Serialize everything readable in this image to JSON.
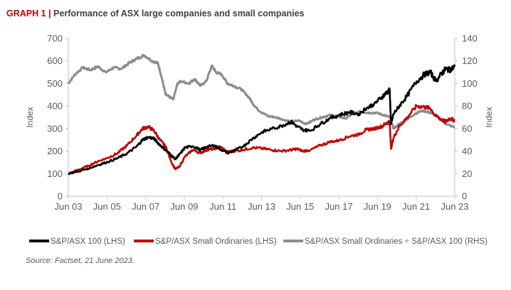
{
  "title": {
    "prefix": "GRAPH 1",
    "separator": "|",
    "text": "Performance of ASX large companies and small companies"
  },
  "source": "Source: Factset, 21 June 2023.",
  "colors": {
    "asx100": "#000000",
    "small_ords": "#c00000",
    "ratio": "#8c8c8c",
    "title_accent": "#c00000",
    "axis": "#bfbfbf"
  },
  "chart_data": {
    "type": "line",
    "x_ticks": [
      "Jun 03",
      "Jun 05",
      "Jun 07",
      "Jun 09",
      "Jun 11",
      "Jun 13",
      "Jun 15",
      "Jun 17",
      "Jun 19",
      "Jun 21",
      "Jun 23"
    ],
    "xlim": [
      2003.46,
      2023.47
    ],
    "ylim_left": [
      0,
      700
    ],
    "ylim_right": [
      0,
      140
    ],
    "yticks_left": [
      0,
      100,
      200,
      300,
      400,
      500,
      600,
      700
    ],
    "yticks_right": [
      0,
      20,
      40,
      60,
      80,
      100,
      120,
      140
    ],
    "ylabel_left": "Index",
    "ylabel_right": "Index",
    "grid": false,
    "legend_position": "bottom",
    "series": [
      {
        "name": "S&P/ASX 100 (LHS)",
        "axis": "left",
        "color": "#000000",
        "x": [
          2003.46,
          2004.0,
          2004.5,
          2005.0,
          2005.5,
          2006.0,
          2006.5,
          2007.0,
          2007.3,
          2007.6,
          2007.9,
          2008.2,
          2008.5,
          2008.8,
          2009.0,
          2009.2,
          2009.5,
          2009.9,
          2010.3,
          2010.6,
          2011.0,
          2011.3,
          2011.7,
          2012.0,
          2012.5,
          2013.0,
          2013.5,
          2014.0,
          2014.5,
          2015.0,
          2015.3,
          2015.6,
          2016.0,
          2016.5,
          2017.0,
          2017.5,
          2018.0,
          2018.5,
          2018.9,
          2019.3,
          2019.7,
          2019.95,
          2020.1,
          2020.17,
          2020.3,
          2020.6,
          2021.0,
          2021.5,
          2021.9,
          2022.2,
          2022.5,
          2022.8,
          2023.0,
          2023.2,
          2023.47
        ],
        "values": [
          100,
          110,
          123,
          138,
          152,
          168,
          190,
          220,
          250,
          262,
          255,
          228,
          205,
          180,
          165,
          183,
          215,
          222,
          205,
          218,
          225,
          210,
          192,
          200,
          220,
          255,
          285,
          298,
          312,
          330,
          310,
          295,
          290,
          320,
          345,
          360,
          372,
          365,
          390,
          410,
          440,
          460,
          470,
          320,
          365,
          400,
          445,
          510,
          540,
          550,
          510,
          545,
          565,
          560,
          575
        ]
      },
      {
        "name": "S&P/ASX Small Ordinaries (LHS)",
        "axis": "left",
        "color": "#c00000",
        "x": [
          2003.46,
          2004.0,
          2004.5,
          2005.0,
          2005.5,
          2006.0,
          2006.5,
          2007.0,
          2007.3,
          2007.6,
          2007.9,
          2008.2,
          2008.5,
          2008.8,
          2009.0,
          2009.2,
          2009.5,
          2009.9,
          2010.3,
          2010.6,
          2011.0,
          2011.3,
          2011.7,
          2012.0,
          2012.5,
          2013.0,
          2013.5,
          2014.0,
          2014.5,
          2015.0,
          2015.3,
          2015.6,
          2016.0,
          2016.5,
          2017.0,
          2017.5,
          2018.0,
          2018.5,
          2018.9,
          2019.3,
          2019.7,
          2019.95,
          2020.1,
          2020.17,
          2020.3,
          2020.6,
          2021.0,
          2021.5,
          2021.9,
          2022.2,
          2022.5,
          2022.8,
          2023.0,
          2023.2,
          2023.47
        ],
        "values": [
          100,
          118,
          135,
          155,
          170,
          190,
          225,
          270,
          300,
          308,
          290,
          250,
          220,
          150,
          120,
          130,
          175,
          205,
          192,
          205,
          210,
          220,
          196,
          200,
          205,
          215,
          212,
          205,
          200,
          205,
          210,
          200,
          205,
          225,
          240,
          248,
          265,
          275,
          295,
          300,
          310,
          325,
          330,
          210,
          260,
          310,
          350,
          400,
          395,
          390,
          355,
          340,
          330,
          345,
          335
        ]
      },
      {
        "name": "S&P/ASX Small Ordinaries ÷ S&P/ASX 100 (RHS)",
        "axis": "right",
        "color": "#8c8c8c",
        "x": [
          2003.46,
          2003.8,
          2004.2,
          2004.6,
          2005.0,
          2005.4,
          2005.8,
          2006.2,
          2006.6,
          2007.0,
          2007.4,
          2007.8,
          2008.1,
          2008.3,
          2008.5,
          2008.7,
          2008.9,
          2009.1,
          2009.3,
          2009.7,
          2010.0,
          2010.3,
          2010.6,
          2010.9,
          2011.1,
          2011.4,
          2011.7,
          2012.0,
          2012.4,
          2012.8,
          2013.1,
          2013.4,
          2013.8,
          2014.2,
          2014.6,
          2015.0,
          2015.4,
          2015.8,
          2016.2,
          2016.6,
          2017.0,
          2017.4,
          2017.8,
          2018.2,
          2018.6,
          2019.0,
          2019.4,
          2019.8,
          2020.1,
          2020.3,
          2020.6,
          2021.0,
          2021.4,
          2021.8,
          2022.2,
          2022.6,
          2023.0,
          2023.47
        ],
        "values": [
          100,
          108,
          114,
          112,
          115,
          110,
          114,
          113,
          118,
          122,
          125,
          120,
          118,
          105,
          90,
          88,
          86,
          100,
          102,
          100,
          104,
          98,
          102,
          116,
          110,
          108,
          100,
          98,
          95,
          88,
          80,
          75,
          71,
          70,
          68,
          66,
          67,
          64,
          68,
          70,
          72,
          71,
          69,
          73,
          75,
          74,
          74,
          72,
          70,
          60,
          64,
          68,
          73,
          76,
          74,
          70,
          64,
          61
        ]
      }
    ]
  }
}
